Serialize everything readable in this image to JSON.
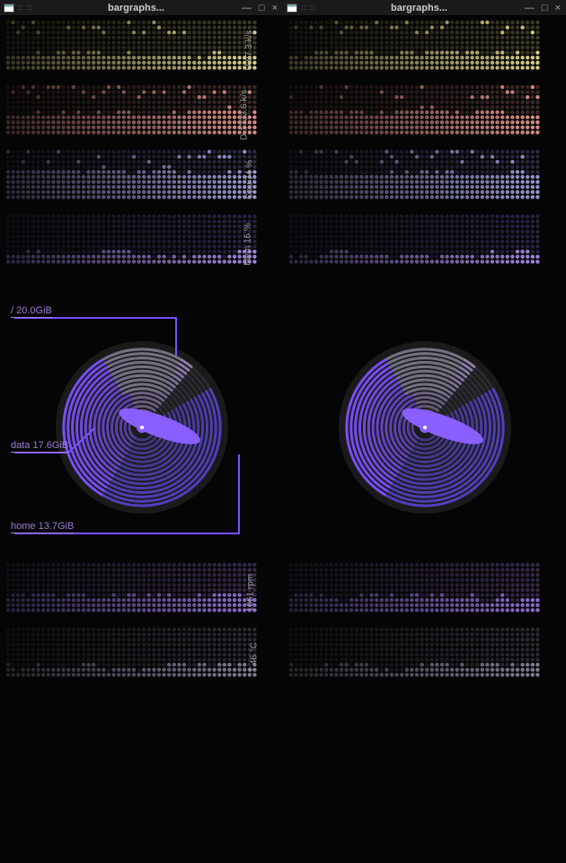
{
  "window": {
    "title": "bargraphs...",
    "minimize": "—",
    "maximize": "□",
    "close": "×"
  },
  "graphs": [
    {
      "id": "upload",
      "label": "U 87.3 k/s",
      "base": "#3d3d28",
      "hi": "#d8d088",
      "fill": 0.3,
      "peaks": true
    },
    {
      "id": "download",
      "label": "D 1733.6 k/s",
      "base": "#3d2a28",
      "hi": "#d89088",
      "fill": 0.45,
      "peaks": true
    },
    {
      "id": "cpu",
      "label": "Cpu 74 %",
      "base": "#2a2a40",
      "hi": "#9898d0",
      "fill": 0.55,
      "peaks": true
    },
    {
      "id": "mem",
      "label": "Mem 16 %",
      "base": "#2a2240",
      "hi": "#a088e0",
      "fill": 0.18,
      "peaks": false
    }
  ],
  "bottom_graphs": [
    {
      "id": "fan",
      "label": "1061 rpm",
      "base": "#352a48",
      "hi": "#8a70d0",
      "fill": 0.32,
      "peaks": false
    },
    {
      "id": "temp",
      "label": "T 46 °C",
      "base": "#2a2a32",
      "hi": "#808098",
      "fill": 0.2,
      "peaks": false
    }
  ],
  "disk": {
    "rings": 16,
    "bg": "#1a1a1a",
    "ring_color": "#707080",
    "ring_dim": "#2a2a30",
    "slices": [
      {
        "label": "/ 20.0GiB",
        "start": -20,
        "sweep": 60,
        "color": "#9080b0"
      },
      {
        "label": "data 17.6GiB",
        "start": 60,
        "sweep": 150,
        "color": "#5040c0"
      },
      {
        "label": "home 13.7GiB",
        "start": 210,
        "sweep": 130,
        "color": "#7a4fff"
      }
    ],
    "needle_color": "#8a5fff"
  },
  "dot": {
    "cols": 50,
    "rows": 10,
    "r": 2.2,
    "gap": 5.6
  }
}
